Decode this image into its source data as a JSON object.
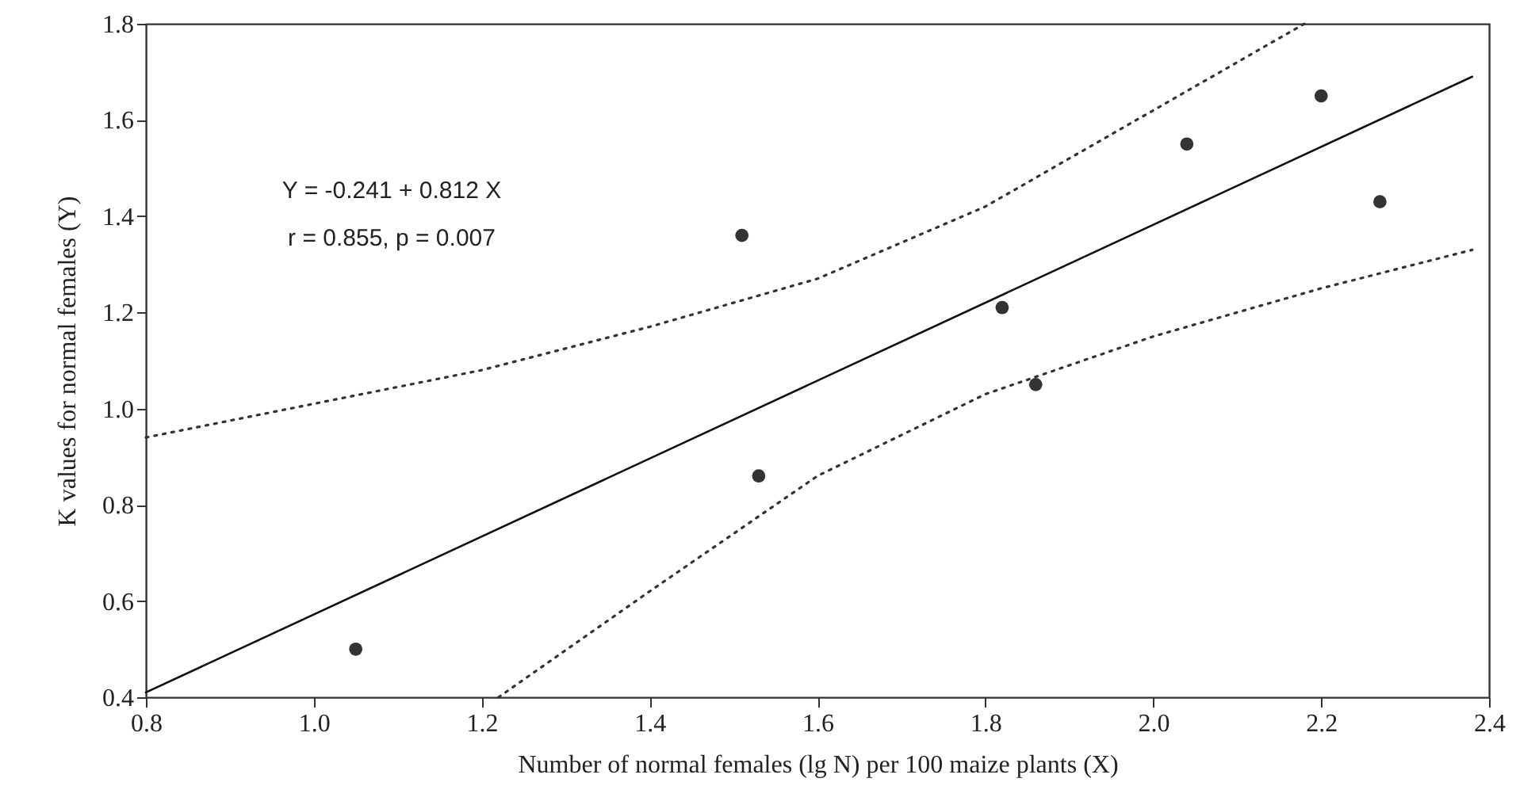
{
  "chart_data": {
    "type": "scatter",
    "xlabel": "Number of normal females (lg N) per 100 maize plants (X)",
    "ylabel": "K values for normal females  (Y)",
    "annotations": [
      "Y = -0.241 + 0.812 X",
      "r = 0.855, p = 0.007"
    ],
    "xlim": [
      0.8,
      2.4
    ],
    "ylim": [
      0.4,
      1.8
    ],
    "xticks": [
      0.8,
      {
        "value": 1,
        "label": "1.0"
      },
      1.2,
      1.4,
      1.6,
      1.8,
      {
        "value": 2,
        "label": "2.0"
      },
      2.2,
      2.4
    ],
    "yticks": [
      0.4,
      0.6,
      0.8,
      {
        "value": 1,
        "label": "1.0"
      },
      1.2,
      1.4,
      1.6,
      1.8
    ],
    "grid": false,
    "series": [
      {
        "color": "#333333",
        "marker": "circle",
        "x": [
          1.05,
          1.51,
          1.53,
          1.82,
          1.86,
          2.04,
          2.2,
          2.27
        ],
        "values": [
          0.5,
          1.36,
          0.86,
          1.21,
          1.05,
          1.55,
          1.65,
          1.43
        ]
      },
      {
        "type": "line",
        "color": "#111111",
        "line_style": "solid",
        "x": [
          0.8,
          2.38
        ],
        "values": [
          0.41,
          1.69
        ]
      },
      {
        "type": "line",
        "color": "#333333",
        "line_style": "dotted",
        "x": [
          0.8,
          1.0,
          1.2,
          1.4,
          1.6,
          1.8,
          2.0,
          2.18
        ],
        "values": [
          0.94,
          1.01,
          1.08,
          1.17,
          1.27,
          1.42,
          1.62,
          1.8
        ]
      },
      {
        "type": "line",
        "color": "#333333",
        "line_style": "dotted",
        "x": [
          1.22,
          1.4,
          1.6,
          1.8,
          2.0,
          2.2,
          2.38
        ],
        "values": [
          0.4,
          0.62,
          0.86,
          1.03,
          1.15,
          1.25,
          1.33
        ]
      }
    ]
  }
}
